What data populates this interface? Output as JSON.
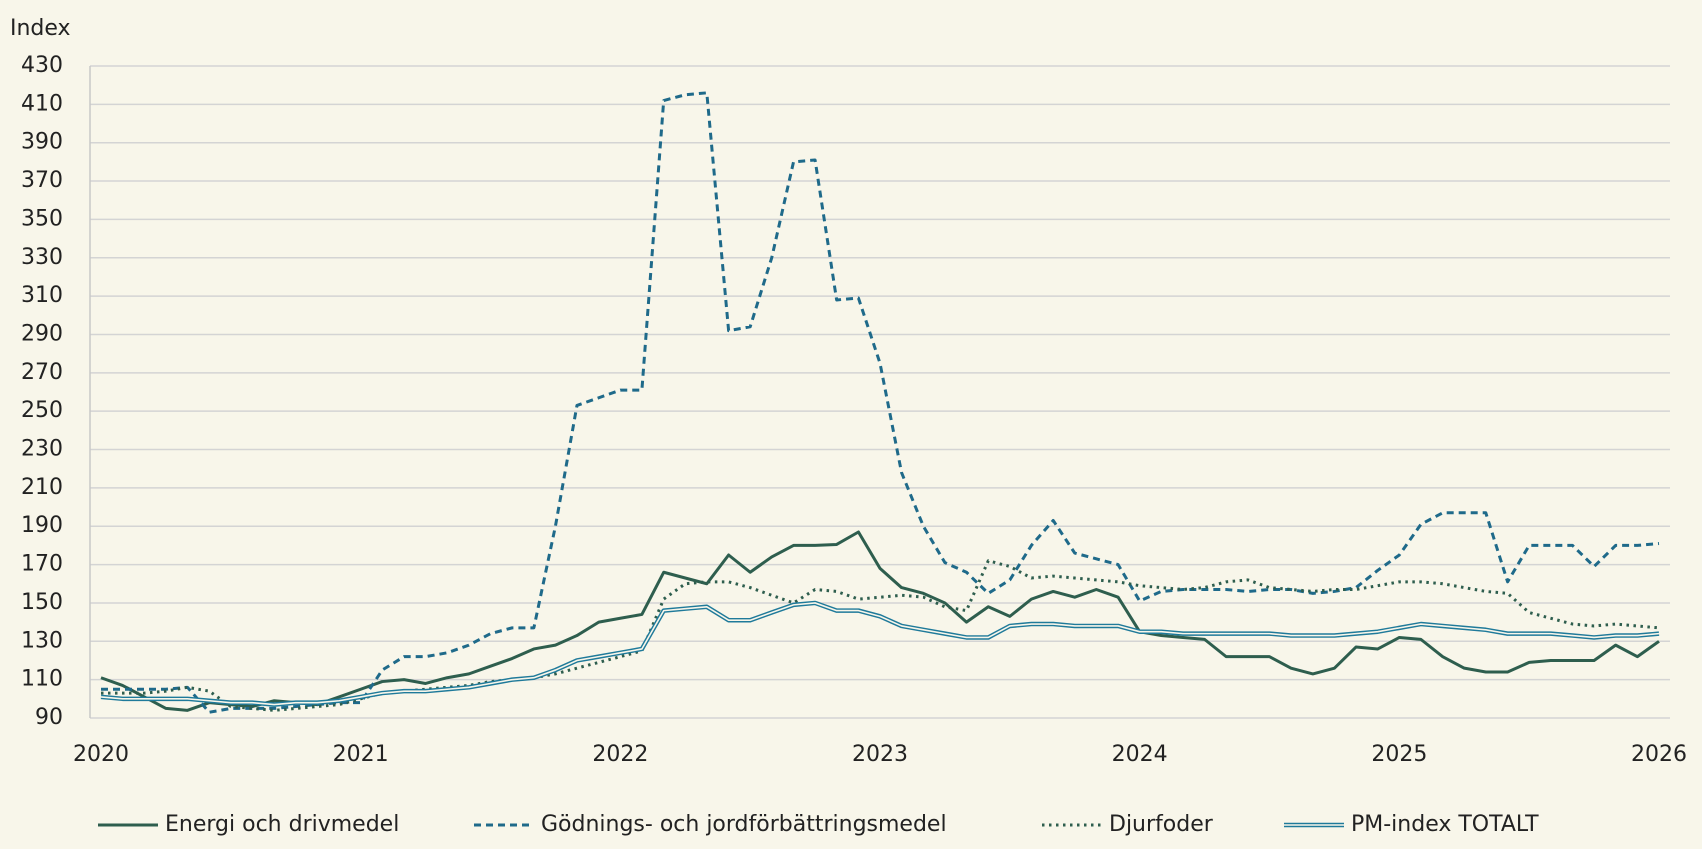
{
  "chart_data": {
    "type": "line",
    "y_label": "Index",
    "xlim": [
      2020,
      2026
    ],
    "xticks": [
      2020,
      2021,
      2022,
      2023,
      2024,
      2025,
      2026
    ],
    "ylim": [
      90,
      430
    ],
    "yticks": [
      90,
      110,
      130,
      150,
      170,
      190,
      210,
      230,
      250,
      270,
      290,
      310,
      330,
      350,
      370,
      390,
      410,
      430
    ],
    "grid": true,
    "legend": "bottom",
    "x": [
      2020,
      2020.083,
      2020.167,
      2020.25,
      2020.333,
      2020.417,
      2020.5,
      2020.583,
      2020.667,
      2020.75,
      2020.833,
      2020.917,
      2021,
      2021.083,
      2021.167,
      2021.25,
      2021.333,
      2021.417,
      2021.5,
      2021.583,
      2021.667,
      2021.75,
      2021.833,
      2021.917,
      2022,
      2022.083,
      2022.167,
      2022.25,
      2022.333,
      2022.417,
      2022.5,
      2022.583,
      2022.667,
      2022.75,
      2022.833,
      2022.917,
      2023,
      2023.083,
      2023.167,
      2023.25,
      2023.333,
      2023.417,
      2023.5,
      2023.583,
      2023.667,
      2023.75,
      2023.833,
      2023.917,
      2024,
      2024.083,
      2024.167,
      2024.25,
      2024.333,
      2024.417,
      2024.5,
      2024.583,
      2024.667,
      2024.75,
      2024.833,
      2024.917,
      2025,
      2025.083,
      2025.167,
      2025.25,
      2025.333,
      2025.417,
      2025.5,
      2025.583,
      2025.667,
      2025.75,
      2025.833,
      2025.917,
      2026
    ],
    "series": [
      {
        "name": "Energi och drivmedel",
        "color": "#2e5e4e",
        "style": "solid",
        "values": [
          111,
          107,
          101,
          95,
          94,
          98,
          97,
          96,
          99,
          98,
          97,
          101,
          105,
          109,
          110,
          108,
          111,
          113,
          117,
          121,
          126,
          128,
          133,
          140,
          142,
          144,
          166,
          163,
          160,
          175,
          166,
          174,
          180,
          180,
          180.5,
          187,
          168,
          158,
          155,
          150,
          140,
          148,
          143,
          152,
          156,
          153,
          157,
          153,
          135,
          133,
          132,
          131,
          122,
          122,
          122,
          116,
          113,
          116,
          127,
          126,
          132,
          131,
          122,
          116,
          114,
          114,
          119,
          120,
          120,
          120,
          128,
          122,
          130
        ]
      },
      {
        "name": "Gödnings- och jordförbättringsmedel",
        "color": "#1f6a8a",
        "style": "dashed",
        "values": [
          105,
          105,
          105,
          105,
          106,
          93,
          95,
          95,
          95,
          96,
          97,
          98,
          98,
          115,
          122,
          122,
          124,
          128,
          134,
          137,
          137,
          190,
          253,
          257,
          261,
          261,
          412,
          415,
          416,
          292,
          294,
          330,
          380,
          381,
          308,
          309,
          275,
          218,
          190,
          171,
          166,
          155,
          162,
          180,
          193,
          176,
          173,
          170,
          151,
          156,
          157,
          157,
          157,
          156,
          157,
          157,
          155,
          156,
          158,
          167,
          175,
          191,
          197,
          197,
          197,
          161,
          180,
          180,
          180,
          169,
          180,
          180,
          181
        ]
      },
      {
        "name": "Djurfoder",
        "color": "#2e5e4e",
        "style": "dotted",
        "values": [
          103,
          103,
          103,
          104,
          106,
          104,
          96,
          95,
          94,
          95,
          96,
          97,
          100,
          103,
          104,
          105,
          106,
          107,
          109,
          110,
          111,
          113,
          116,
          119,
          122,
          125,
          152,
          160,
          161,
          161,
          158,
          154,
          150,
          157,
          156,
          152,
          153,
          154,
          153,
          148,
          146,
          172,
          169,
          163,
          164,
          163,
          162,
          161,
          159,
          158,
          157,
          158,
          161,
          162,
          158,
          157,
          156,
          157,
          157,
          159,
          161,
          161,
          160,
          158,
          156,
          155,
          145,
          142,
          139,
          138,
          139,
          138,
          137
        ]
      },
      {
        "name": "PM-index TOTALT",
        "color": "#1f7a9a",
        "style": "double",
        "values": [
          101,
          100,
          100,
          100,
          100,
          99,
          98,
          98,
          97,
          98,
          98,
          99,
          101,
          103,
          104,
          104,
          105,
          106,
          108,
          110,
          111,
          115,
          120,
          122,
          124,
          126,
          146,
          147,
          148,
          141,
          141,
          145,
          149,
          150,
          146,
          146,
          143,
          138,
          136,
          134,
          132,
          132,
          138,
          139,
          139,
          138,
          138,
          138,
          135,
          135,
          134,
          134,
          134,
          134,
          134,
          133,
          133,
          133,
          134,
          135,
          137,
          139,
          138,
          137,
          136,
          134,
          134,
          134,
          133,
          132,
          133,
          133,
          134
        ]
      }
    ]
  }
}
